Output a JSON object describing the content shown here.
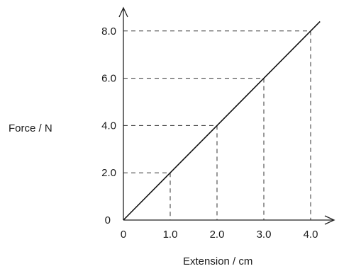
{
  "chart_data": {
    "type": "line",
    "title": "",
    "xlabel": "Extension / cm",
    "ylabel": "Force / N",
    "xlim": [
      0,
      4.0
    ],
    "ylim": [
      0,
      8.0
    ],
    "grid": false,
    "x_ticks": [
      "0",
      "1.0",
      "2.0",
      "3.0",
      "4.0"
    ],
    "y_ticks": [
      "0",
      "2.0",
      "4.0",
      "6.0",
      "8.0"
    ],
    "series": [
      {
        "x": [
          0,
          1.0,
          2.0,
          3.0,
          4.0,
          4.2
        ],
        "y": [
          0,
          2.0,
          4.0,
          6.0,
          8.0,
          8.4
        ]
      }
    ],
    "reference_points": [
      {
        "x": 1.0,
        "y": 2.0
      },
      {
        "x": 2.0,
        "y": 4.0
      },
      {
        "x": 3.0,
        "y": 6.0
      },
      {
        "x": 4.0,
        "y": 8.0
      }
    ],
    "colors": {
      "line": "#111111",
      "axis": "#222222",
      "guide": "#333333"
    }
  }
}
